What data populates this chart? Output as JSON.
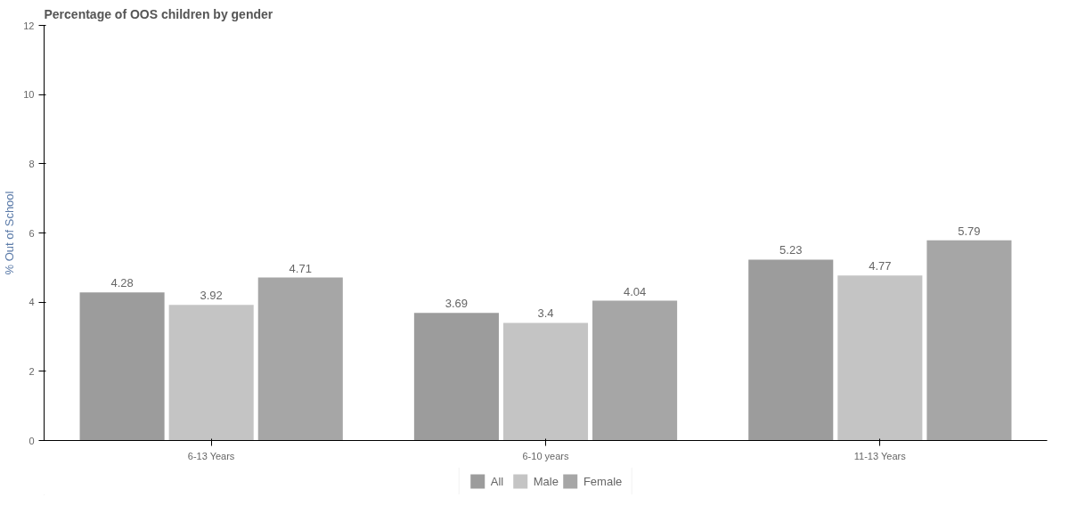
{
  "chart_data": {
    "type": "bar",
    "title": "Percentage of OOS children by gender",
    "ylabel": "% Out of School",
    "categories": [
      "6-13 Years",
      "6-10 years",
      "11-13 Years"
    ],
    "series": [
      {
        "name": "All",
        "color": "#9c9c9c",
        "values": [
          4.28,
          3.69,
          5.23
        ]
      },
      {
        "name": "Male",
        "color": "#c4c4c4",
        "values": [
          3.92,
          3.4,
          4.77
        ]
      },
      {
        "name": "Female",
        "color": "#a6a6a6",
        "values": [
          4.71,
          4.04,
          5.79
        ]
      }
    ],
    "ylim": [
      0,
      12
    ],
    "yticks": [
      0,
      2,
      4,
      6,
      8,
      10,
      12
    ],
    "grid": false,
    "legend": "bottom",
    "data_labels": true
  }
}
